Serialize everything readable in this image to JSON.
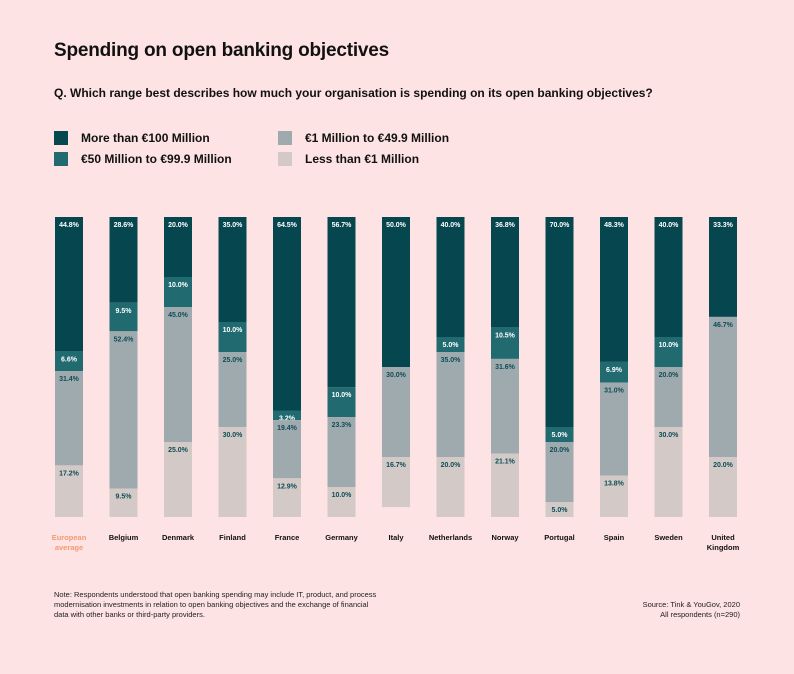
{
  "title": "Spending on open banking objectives",
  "question": "Q. Which range best describes how much your organisation is spending on its open banking objectives?",
  "legend": [
    {
      "label": "More than €100 Million",
      "color": "#06474f"
    },
    {
      "label": "€50 Million to €99.9 Million",
      "color": "#206a70"
    },
    {
      "label": "€1 Million to €49.9 Million",
      "color": "#9faaae"
    },
    {
      "label": "Less than €1 Million",
      "color": "#d3c9c7"
    }
  ],
  "footnote": "Note: Respondents understood that open banking spending may include IT, product, and process modernisation investments in relation to open banking objectives and the exchange of financial data with other banks or third-party providers.",
  "source_line1": "Source: Tink & YouGov, 2020",
  "source_line2": "All respondents (n=290)",
  "highlight_color": "#f39a73",
  "chart_data": {
    "type": "bar",
    "stacked": true,
    "ylim": [
      0,
      100
    ],
    "grid": false,
    "categories": [
      [
        "European",
        "average"
      ],
      [
        "Belgium"
      ],
      [
        "Denmark"
      ],
      [
        "Finland"
      ],
      [
        "France"
      ],
      [
        "Germany"
      ],
      [
        "Italy"
      ],
      [
        "Netherlands"
      ],
      [
        "Norway"
      ],
      [
        "Portugal"
      ],
      [
        "Spain"
      ],
      [
        "Sweden"
      ],
      [
        "United",
        "Kingdom"
      ]
    ],
    "highlight_category_index": 0,
    "series": [
      {
        "name": "More than €100 Million",
        "values": [
          44.8,
          28.6,
          20.0,
          35.0,
          64.5,
          56.7,
          50.0,
          40.0,
          36.8,
          70.0,
          48.3,
          40.0,
          33.3
        ],
        "labels": [
          "44.8%",
          "28.6%",
          "20.0%",
          "35.0%",
          "64.5%",
          "56.7%",
          "50.0%",
          "40.0%",
          "36.8%",
          "70.0%",
          "48.3%",
          "40.0%",
          "33.3%"
        ]
      },
      {
        "name": "€50 Million to €99.9 Million",
        "values": [
          6.6,
          9.5,
          10.0,
          10.0,
          3.2,
          10.0,
          0,
          5.0,
          10.5,
          5.0,
          6.9,
          10.0,
          0
        ],
        "labels": [
          "6.6%",
          "9.5%",
          "10.0%",
          "10.0%",
          "3.2%",
          "10.0%",
          "",
          "5.0%",
          "10.5%",
          "5.0%",
          "6.9%",
          "10.0%",
          ""
        ]
      },
      {
        "name": "€1 Million to €49.9 Million",
        "values": [
          31.4,
          52.4,
          45.0,
          25.0,
          19.4,
          23.3,
          30.0,
          35.0,
          31.6,
          20.0,
          31.0,
          20.0,
          46.7
        ],
        "labels": [
          "31.4%",
          "52.4%",
          "45.0%",
          "25.0%",
          "19.4%",
          "23.3%",
          "30.0%",
          "35.0%",
          "31.6%",
          "20.0%",
          "31.0%",
          "20.0%",
          "46.7%"
        ]
      },
      {
        "name": "Less than €1 Million",
        "values": [
          17.2,
          9.5,
          25.0,
          30.0,
          12.9,
          10.0,
          16.7,
          20.0,
          21.1,
          5.0,
          13.8,
          30.0,
          20.0
        ],
        "labels": [
          "17.2%",
          "9.5%",
          "25.0%",
          "30.0%",
          "12.9%",
          "10.0%",
          "16.7%",
          "20.0%",
          "21.1%",
          "5.0%",
          "13.8%",
          "30.0%",
          "20.0%"
        ]
      }
    ]
  }
}
